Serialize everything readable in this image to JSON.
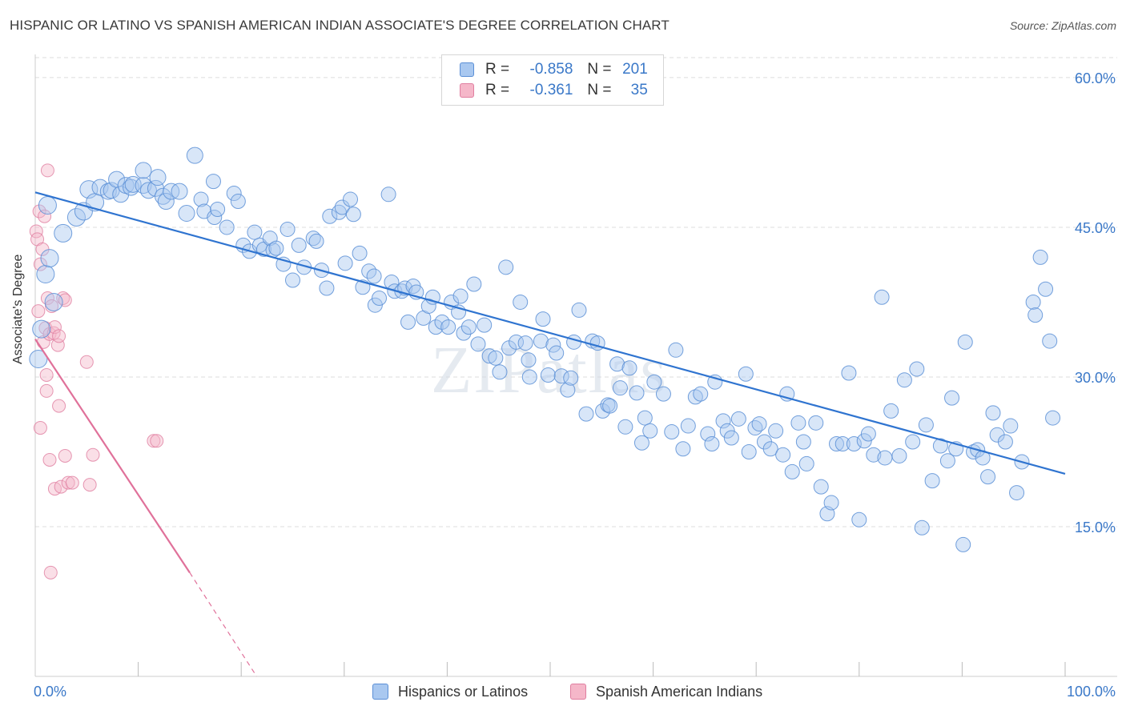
{
  "header": {
    "title": "HISPANIC OR LATINO VS SPANISH AMERICAN INDIAN ASSOCIATE'S DEGREE CORRELATION CHART",
    "source": "Source: ZipAtlas.com"
  },
  "watermark": "ZIPatlas",
  "legend": {
    "rows": [
      {
        "r_label": "R =",
        "r_value": "-0.858",
        "n_label": "N =",
        "n_value": "201",
        "color": "#a9c8f0"
      },
      {
        "r_label": "R =",
        "r_value": "-0.361",
        "n_label": "N =",
        "n_value": "35",
        "color": "#f5b7c9"
      }
    ]
  },
  "bottom_legend": [
    {
      "label": "Hispanics or Latinos",
      "color": "#a9c8f0"
    },
    {
      "label": "Spanish American Indians",
      "color": "#f5b7c9"
    }
  ],
  "colors": {
    "blue_fill": "#a9c8f0",
    "blue_stroke": "#5b8fd6",
    "blue_line": "#2f74d0",
    "pink_fill": "#f5b7c9",
    "pink_stroke": "#e07ea0",
    "pink_line": "#e0719a",
    "grid": "#dddddd",
    "tick_label": "#3a78c8"
  },
  "chart_data": {
    "type": "scatter",
    "title": "HISPANIC OR LATINO VS SPANISH AMERICAN INDIAN ASSOCIATE'S DEGREE CORRELATION CHART",
    "xlabel": "",
    "ylabel": "Associate's Degree",
    "xlim": [
      0,
      100
    ],
    "ylim": [
      0,
      62
    ],
    "x_tick_labels": [
      "0.0%",
      "100.0%"
    ],
    "y_ticks": [
      15,
      30,
      45,
      60
    ],
    "y_tick_labels": [
      "15.0%",
      "30.0%",
      "45.0%",
      "60.0%"
    ],
    "series": [
      {
        "name": "Hispanics or Latinos",
        "r": -0.858,
        "n": 201,
        "trend": {
          "x": [
            0,
            100
          ],
          "y": [
            48.5,
            20.3
          ]
        },
        "points": [
          [
            0.3,
            31.8
          ],
          [
            0.6,
            34.8
          ],
          [
            1.0,
            40.3
          ],
          [
            1.2,
            47.2
          ],
          [
            1.4,
            41.9
          ],
          [
            1.8,
            37.5
          ],
          [
            2.7,
            44.4
          ],
          [
            4.0,
            46.0
          ],
          [
            4.7,
            46.6
          ],
          [
            5.2,
            48.8
          ],
          [
            5.8,
            47.5
          ],
          [
            6.3,
            49.0
          ],
          [
            7.1,
            48.6
          ],
          [
            7.4,
            48.7
          ],
          [
            7.9,
            49.8
          ],
          [
            8.3,
            48.3
          ],
          [
            8.8,
            49.2
          ],
          [
            9.3,
            49.0
          ],
          [
            9.5,
            49.3
          ],
          [
            10.5,
            49.2
          ],
          [
            10.5,
            50.7
          ],
          [
            11.0,
            48.7
          ],
          [
            11.7,
            48.9
          ],
          [
            11.9,
            50.0
          ],
          [
            12.4,
            48.1
          ],
          [
            12.7,
            47.6
          ],
          [
            13.2,
            48.6
          ],
          [
            14.0,
            48.6
          ],
          [
            14.7,
            46.4
          ],
          [
            15.5,
            52.2
          ],
          [
            16.1,
            47.8
          ],
          [
            16.4,
            46.6
          ],
          [
            17.3,
            49.6
          ],
          [
            17.4,
            46.0
          ],
          [
            17.7,
            46.8
          ],
          [
            18.6,
            45.0
          ],
          [
            19.3,
            48.4
          ],
          [
            19.7,
            47.6
          ],
          [
            20.2,
            43.2
          ],
          [
            20.8,
            42.6
          ],
          [
            21.3,
            44.5
          ],
          [
            21.8,
            43.2
          ],
          [
            22.2,
            42.8
          ],
          [
            22.8,
            43.9
          ],
          [
            23.1,
            42.7
          ],
          [
            23.4,
            42.9
          ],
          [
            24.1,
            41.3
          ],
          [
            24.5,
            44.8
          ],
          [
            25.0,
            39.7
          ],
          [
            25.6,
            43.2
          ],
          [
            26.1,
            41.0
          ],
          [
            27.0,
            43.9
          ],
          [
            27.3,
            43.6
          ],
          [
            27.8,
            40.7
          ],
          [
            28.3,
            38.9
          ],
          [
            28.6,
            46.1
          ],
          [
            29.5,
            46.5
          ],
          [
            29.8,
            47.0
          ],
          [
            30.1,
            41.4
          ],
          [
            30.6,
            47.8
          ],
          [
            30.9,
            46.3
          ],
          [
            31.5,
            42.4
          ],
          [
            31.8,
            39.0
          ],
          [
            32.4,
            40.6
          ],
          [
            32.9,
            40.1
          ],
          [
            33.0,
            37.2
          ],
          [
            33.4,
            37.9
          ],
          [
            34.3,
            48.3
          ],
          [
            34.6,
            39.5
          ],
          [
            34.9,
            38.6
          ],
          [
            35.6,
            38.6
          ],
          [
            35.9,
            38.9
          ],
          [
            36.2,
            35.5
          ],
          [
            36.7,
            39.1
          ],
          [
            37.0,
            38.5
          ],
          [
            37.7,
            35.9
          ],
          [
            38.2,
            37.1
          ],
          [
            38.6,
            38.0
          ],
          [
            38.9,
            35.0
          ],
          [
            39.5,
            35.5
          ],
          [
            40.1,
            35.0
          ],
          [
            40.4,
            37.5
          ],
          [
            41.1,
            36.5
          ],
          [
            41.3,
            38.1
          ],
          [
            41.6,
            34.4
          ],
          [
            42.1,
            35.0
          ],
          [
            42.6,
            39.3
          ],
          [
            43.0,
            33.3
          ],
          [
            43.6,
            35.2
          ],
          [
            44.1,
            32.1
          ],
          [
            44.7,
            31.9
          ],
          [
            45.1,
            30.5
          ],
          [
            45.7,
            41.0
          ],
          [
            46.0,
            32.9
          ],
          [
            46.7,
            33.5
          ],
          [
            47.1,
            37.5
          ],
          [
            47.6,
            33.4
          ],
          [
            47.9,
            31.7
          ],
          [
            48.0,
            30.0
          ],
          [
            49.1,
            33.6
          ],
          [
            49.3,
            35.8
          ],
          [
            49.8,
            30.2
          ],
          [
            50.3,
            33.2
          ],
          [
            50.6,
            32.4
          ],
          [
            51.1,
            30.1
          ],
          [
            51.7,
            28.7
          ],
          [
            52.0,
            29.9
          ],
          [
            52.3,
            33.5
          ],
          [
            52.8,
            36.7
          ],
          [
            53.5,
            26.3
          ],
          [
            54.1,
            33.6
          ],
          [
            54.6,
            33.4
          ],
          [
            55.1,
            26.6
          ],
          [
            55.6,
            27.2
          ],
          [
            55.8,
            27.1
          ],
          [
            56.5,
            31.3
          ],
          [
            56.8,
            28.9
          ],
          [
            57.3,
            25.0
          ],
          [
            57.7,
            30.9
          ],
          [
            58.4,
            28.4
          ],
          [
            58.9,
            23.4
          ],
          [
            59.2,
            25.9
          ],
          [
            59.7,
            24.6
          ],
          [
            60.1,
            29.5
          ],
          [
            61.0,
            28.3
          ],
          [
            61.8,
            24.5
          ],
          [
            62.2,
            32.7
          ],
          [
            62.9,
            22.8
          ],
          [
            63.4,
            25.1
          ],
          [
            64.1,
            28.0
          ],
          [
            64.6,
            28.3
          ],
          [
            65.3,
            24.3
          ],
          [
            65.7,
            23.3
          ],
          [
            66.0,
            29.5
          ],
          [
            66.8,
            25.6
          ],
          [
            67.2,
            24.6
          ],
          [
            67.6,
            23.9
          ],
          [
            68.3,
            25.8
          ],
          [
            69.0,
            30.3
          ],
          [
            69.3,
            22.5
          ],
          [
            69.9,
            24.9
          ],
          [
            70.3,
            25.3
          ],
          [
            70.8,
            23.5
          ],
          [
            71.4,
            22.8
          ],
          [
            71.9,
            24.6
          ],
          [
            72.6,
            22.2
          ],
          [
            73.0,
            28.3
          ],
          [
            73.5,
            20.5
          ],
          [
            74.1,
            25.4
          ],
          [
            74.6,
            23.5
          ],
          [
            74.9,
            21.3
          ],
          [
            75.8,
            25.4
          ],
          [
            76.3,
            19.0
          ],
          [
            76.9,
            16.3
          ],
          [
            77.3,
            17.4
          ],
          [
            77.8,
            23.3
          ],
          [
            78.4,
            23.3
          ],
          [
            79.0,
            30.4
          ],
          [
            79.5,
            23.3
          ],
          [
            80.0,
            15.7
          ],
          [
            80.5,
            23.6
          ],
          [
            80.9,
            24.3
          ],
          [
            81.4,
            22.2
          ],
          [
            82.2,
            38.0
          ],
          [
            82.5,
            21.9
          ],
          [
            83.1,
            26.6
          ],
          [
            83.9,
            22.1
          ],
          [
            84.4,
            29.7
          ],
          [
            85.2,
            23.5
          ],
          [
            85.6,
            30.8
          ],
          [
            86.1,
            14.9
          ],
          [
            86.5,
            25.2
          ],
          [
            87.1,
            19.6
          ],
          [
            87.9,
            23.1
          ],
          [
            88.6,
            21.6
          ],
          [
            89.0,
            27.9
          ],
          [
            89.4,
            22.8
          ],
          [
            90.1,
            13.2
          ],
          [
            90.3,
            33.5
          ],
          [
            91.1,
            22.5
          ],
          [
            91.5,
            22.7
          ],
          [
            92.0,
            21.9
          ],
          [
            92.5,
            20.0
          ],
          [
            93.0,
            26.4
          ],
          [
            93.4,
            24.2
          ],
          [
            94.2,
            23.5
          ],
          [
            94.7,
            25.1
          ],
          [
            95.3,
            18.4
          ],
          [
            95.8,
            21.5
          ],
          [
            96.9,
            37.5
          ],
          [
            97.1,
            36.2
          ],
          [
            97.6,
            42.0
          ],
          [
            98.1,
            38.8
          ],
          [
            98.5,
            33.6
          ],
          [
            98.8,
            25.9
          ]
        ]
      },
      {
        "name": "Spanish American Indians",
        "r": -0.361,
        "n": 35,
        "trend": {
          "x": [
            0,
            15
          ],
          "y": [
            33.8,
            10.4
          ],
          "dashed_to": {
            "x": 21.5,
            "y": 0
          }
        },
        "points": [
          [
            0.1,
            44.6
          ],
          [
            0.2,
            43.8
          ],
          [
            0.3,
            36.6
          ],
          [
            0.4,
            46.6
          ],
          [
            0.5,
            41.3
          ],
          [
            0.5,
            24.9
          ],
          [
            0.7,
            42.8
          ],
          [
            0.8,
            33.5
          ],
          [
            0.9,
            46.1
          ],
          [
            1.0,
            34.9
          ],
          [
            1.1,
            28.6
          ],
          [
            1.1,
            30.2
          ],
          [
            1.2,
            50.7
          ],
          [
            1.2,
            37.9
          ],
          [
            1.4,
            21.7
          ],
          [
            1.4,
            34.3
          ],
          [
            1.5,
            10.4
          ],
          [
            1.6,
            37.1
          ],
          [
            1.8,
            34.4
          ],
          [
            1.9,
            18.8
          ],
          [
            1.9,
            35.0
          ],
          [
            2.2,
            33.2
          ],
          [
            2.3,
            34.1
          ],
          [
            2.3,
            27.1
          ],
          [
            2.5,
            19.0
          ],
          [
            2.7,
            37.9
          ],
          [
            2.9,
            22.1
          ],
          [
            2.9,
            37.7
          ],
          [
            3.2,
            19.4
          ],
          [
            3.6,
            19.4
          ],
          [
            5.0,
            31.5
          ],
          [
            5.3,
            19.2
          ],
          [
            5.6,
            22.2
          ],
          [
            11.5,
            23.6
          ],
          [
            11.8,
            23.6
          ]
        ]
      }
    ]
  }
}
